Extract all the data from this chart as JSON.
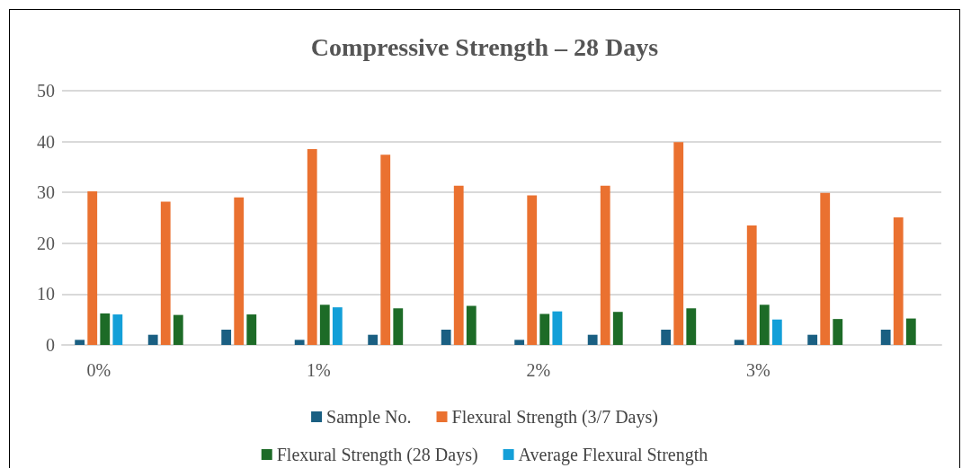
{
  "chart_data": {
    "type": "bar",
    "title": "Compressive Strength – 28 Days",
    "categories": [
      "0%",
      null,
      null,
      "1%",
      null,
      null,
      "2%",
      null,
      null,
      "3%",
      null,
      null
    ],
    "series": [
      {
        "name": "Sample No.",
        "color": "#1a5f82",
        "values": [
          1,
          2,
          3,
          1,
          2,
          3,
          1,
          2,
          3,
          1,
          2,
          3
        ]
      },
      {
        "name": "Flexural Strength (3/7 Days)",
        "color": "#ea7130",
        "values": [
          30.2,
          28.2,
          29,
          38.5,
          37.4,
          31.3,
          29.4,
          31.3,
          39.9,
          23.5,
          29.9,
          25.1
        ]
      },
      {
        "name": "Flexural Strength (28 Days)",
        "color": "#1d6b27",
        "values": [
          6.2,
          5.9,
          6.0,
          7.9,
          7.2,
          7.7,
          6.1,
          6.5,
          7.2,
          7.9,
          5.1,
          5.2
        ]
      },
      {
        "name": "Average Flexural Strength",
        "color": "#139fd8",
        "values": [
          6.0,
          null,
          null,
          7.4,
          null,
          null,
          6.6,
          null,
          null,
          5.0,
          null,
          null
        ]
      }
    ],
    "ylim": [
      0,
      50
    ],
    "yticks": [
      0,
      10,
      20,
      30,
      40,
      50
    ],
    "grid": "y",
    "legend": "bottom"
  }
}
